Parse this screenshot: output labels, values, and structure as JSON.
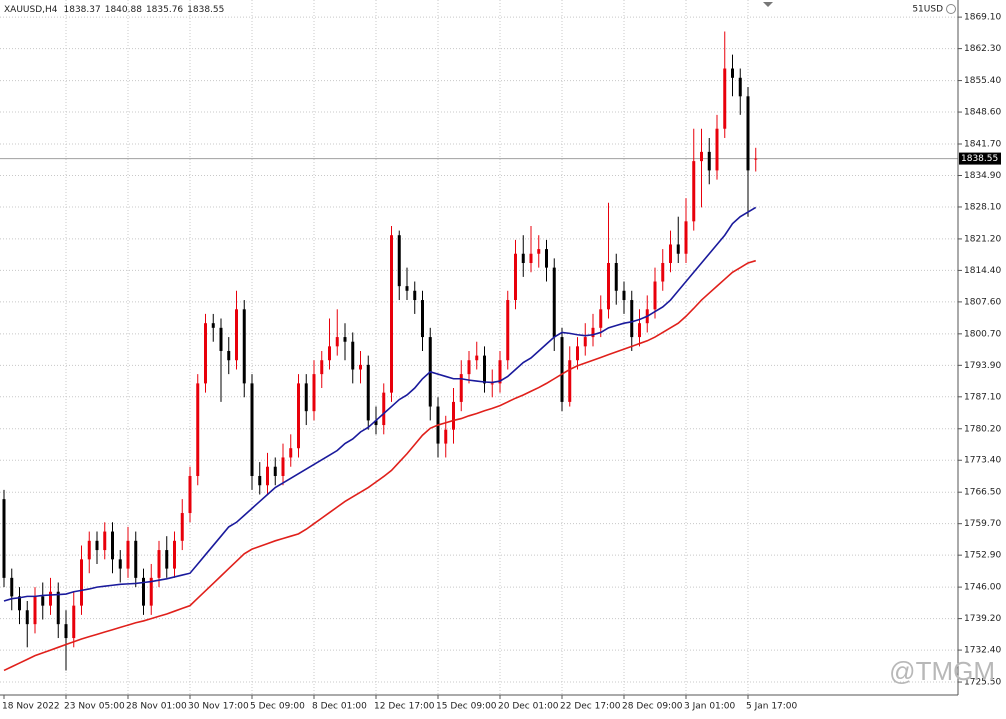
{
  "chart_data": {
    "type": "candlestick",
    "symbol": "XAUUSD,H4",
    "badge": "51USD",
    "watermark": "@TMGM",
    "up_color": "#e8000b",
    "down_color": "#000000",
    "grid": true,
    "ylim": [
      1722.7,
      1872.8
    ],
    "yticks": [
      {
        "value": 1869.1,
        "label": "1869.10"
      },
      {
        "value": 1862.3,
        "label": "1862.30"
      },
      {
        "value": 1855.4,
        "label": "1855.40"
      },
      {
        "value": 1848.6,
        "label": "1848.60"
      },
      {
        "value": 1841.7,
        "label": "1841.70"
      },
      {
        "value": 1834.9,
        "label": "1834.90"
      },
      {
        "value": 1828.1,
        "label": "1828.10"
      },
      {
        "value": 1821.2,
        "label": "1821.20"
      },
      {
        "value": 1814.4,
        "label": "1814.40"
      },
      {
        "value": 1807.6,
        "label": "1807.60"
      },
      {
        "value": 1800.7,
        "label": "1800.70"
      },
      {
        "value": 1793.9,
        "label": "1793.90"
      },
      {
        "value": 1787.1,
        "label": "1787.10"
      },
      {
        "value": 1780.2,
        "label": "1780.20"
      },
      {
        "value": 1773.4,
        "label": "1773.40"
      },
      {
        "value": 1766.5,
        "label": "1766.50"
      },
      {
        "value": 1759.7,
        "label": "1759.70"
      },
      {
        "value": 1752.9,
        "label": "1752.90"
      },
      {
        "value": 1746,
        "label": "1746.00"
      },
      {
        "value": 1739.2,
        "label": "1739.20"
      },
      {
        "value": 1732.4,
        "label": "1732.40"
      },
      {
        "value": 1725.5,
        "label": "1725.50"
      }
    ],
    "categories": [
      "18 Nov 2022",
      null,
      null,
      null,
      null,
      null,
      null,
      null,
      "23 Nov 05:00",
      null,
      null,
      null,
      null,
      null,
      null,
      null,
      "28 Nov 01:00",
      null,
      null,
      null,
      null,
      null,
      null,
      null,
      "30 Nov 17:00",
      null,
      null,
      null,
      null,
      null,
      null,
      null,
      "5 Dec 09:00",
      null,
      null,
      null,
      null,
      null,
      null,
      null,
      "8 Dec 01:00",
      null,
      null,
      null,
      null,
      null,
      null,
      null,
      "12 Dec 17:00",
      null,
      null,
      null,
      null,
      null,
      null,
      null,
      "15 Dec 09:00",
      null,
      null,
      null,
      null,
      null,
      null,
      null,
      "20 Dec 01:00",
      null,
      null,
      null,
      null,
      null,
      null,
      null,
      "22 Dec 17:00",
      null,
      null,
      null,
      null,
      null,
      null,
      null,
      "28 Dec 09:00",
      null,
      null,
      null,
      null,
      null,
      null,
      null,
      "3 Jan 01:00",
      null,
      null,
      null,
      null,
      null,
      null,
      null,
      "5 Jan 17:00",
      null
    ],
    "open": [
      1765,
      1748,
      1744,
      1741,
      1738,
      1744,
      1742,
      1745,
      1738,
      1735,
      1742,
      1752,
      1756,
      1754,
      1758,
      1752,
      1750,
      1756,
      1748,
      1742,
      1748,
      1754,
      1750,
      1756,
      1762,
      1770,
      1790,
      1803,
      1802,
      1797,
      1795,
      1806,
      1790,
      1770,
      1768,
      1772,
      1770,
      1774,
      1776,
      1790,
      1784,
      1792,
      1795,
      1798,
      1800,
      1799,
      1793,
      1794,
      1782,
      1781,
      1788,
      1822,
      1811,
      1810,
      1808,
      1800,
      1785,
      1777,
      1780,
      1786,
      1792,
      1795,
      1796,
      1790,
      1790,
      1795,
      1808,
      1818,
      1816,
      1818,
      1819,
      1815,
      1800,
      1786,
      1795,
      1798,
      1800,
      1802,
      1806,
      1816,
      1810,
      1808,
      1800,
      1803,
      1806,
      1812,
      1816,
      1820,
      1818,
      1825,
      1838,
      1840,
      1836,
      1845,
      1858,
      1856,
      1852,
      1838.37
    ],
    "high": [
      1767,
      1750,
      1746,
      1743,
      1746,
      1747,
      1748,
      1747,
      1741,
      1745,
      1755,
      1758,
      1758,
      1760,
      1760,
      1754,
      1759,
      1758,
      1750,
      1751,
      1756,
      1757,
      1758,
      1765,
      1772,
      1792,
      1805,
      1805,
      1804,
      1800,
      1810,
      1808,
      1792,
      1773,
      1775,
      1774,
      1777,
      1779,
      1792,
      1792,
      1795,
      1797,
      1804,
      1806,
      1803,
      1801,
      1797,
      1796,
      1785,
      1790,
      1824,
      1823,
      1815,
      1812,
      1810,
      1802,
      1787,
      1783,
      1789,
      1795,
      1797,
      1799,
      1798,
      1793,
      1797,
      1810,
      1821,
      1822,
      1824,
      1822,
      1821,
      1817,
      1802,
      1798,
      1800,
      1803,
      1805,
      1809,
      1829,
      1818,
      1812,
      1810,
      1806,
      1809,
      1815,
      1819,
      1823,
      1826,
      1830,
      1845,
      1845,
      1843,
      1848,
      1866,
      1861,
      1858,
      1854,
      1840.88
    ],
    "low": [
      1746,
      1741,
      1738,
      1733,
      1736,
      1739,
      1740,
      1735,
      1728,
      1733,
      1740,
      1749,
      1751,
      1752,
      1749,
      1747,
      1748,
      1746,
      1740,
      1740,
      1746,
      1748,
      1748,
      1754,
      1760,
      1768,
      1788,
      1799,
      1786,
      1792,
      1793,
      1787,
      1767,
      1766,
      1766,
      1768,
      1768,
      1772,
      1774,
      1781,
      1782,
      1789,
      1793,
      1796,
      1795,
      1790,
      1790,
      1780,
      1779,
      1779,
      1786,
      1808,
      1808,
      1805,
      1797,
      1782,
      1774,
      1774,
      1777,
      1784,
      1790,
      1793,
      1788,
      1787,
      1788,
      1793,
      1806,
      1813,
      1814,
      1815,
      1812,
      1797,
      1784,
      1785,
      1793,
      1796,
      1798,
      1800,
      1804,
      1807,
      1805,
      1797,
      1798,
      1801,
      1804,
      1810,
      1814,
      1816,
      1816,
      1823,
      1828,
      1833,
      1834,
      1843,
      1852,
      1848,
      1826,
      1835.76
    ],
    "close": [
      1748,
      1744,
      1741,
      1738,
      1744,
      1742,
      1745,
      1738,
      1735,
      1742,
      1752,
      1756,
      1754,
      1758,
      1752,
      1750,
      1756,
      1748,
      1742,
      1748,
      1754,
      1750,
      1756,
      1762,
      1770,
      1790,
      1803,
      1802,
      1797,
      1795,
      1806,
      1790,
      1770,
      1768,
      1772,
      1770,
      1774,
      1776,
      1790,
      1784,
      1792,
      1795,
      1798,
      1800,
      1799,
      1793,
      1794,
      1782,
      1781,
      1788,
      1822,
      1811,
      1810,
      1808,
      1800,
      1785,
      1777,
      1780,
      1786,
      1792,
      1795,
      1796,
      1790,
      1790,
      1795,
      1808,
      1818,
      1816,
      1818,
      1819,
      1815,
      1800,
      1786,
      1795,
      1798,
      1800,
      1802,
      1806,
      1816,
      1810,
      1808,
      1800,
      1803,
      1806,
      1812,
      1816,
      1820,
      1818,
      1825,
      1838,
      1840,
      1836,
      1845,
      1858,
      1856,
      1852,
      1836,
      1838.55
    ],
    "series": [
      {
        "color": "#1a1a9c",
        "values": [
          1743,
          1743.5,
          1743.7,
          1744,
          1744,
          1744.2,
          1744.3,
          1744.4,
          1744.5,
          1745,
          1745.3,
          1745.6,
          1746,
          1746.2,
          1746.4,
          1746.6,
          1746.7,
          1746.8,
          1747,
          1747.2,
          1747.5,
          1747.8,
          1748.2,
          1748.6,
          1749,
          1751,
          1753,
          1755,
          1757,
          1759,
          1760,
          1761.5,
          1763,
          1764.5,
          1766,
          1767.5,
          1768.5,
          1769.5,
          1770.5,
          1771.5,
          1772.5,
          1773.5,
          1774.5,
          1775.5,
          1777,
          1778,
          1779.5,
          1780.5,
          1782,
          1783.5,
          1785,
          1786.5,
          1787.5,
          1789,
          1791,
          1792.5,
          1792,
          1791.5,
          1791,
          1791,
          1790.7,
          1790.5,
          1790.3,
          1790.2,
          1790.5,
          1791.5,
          1793,
          1794.5,
          1795.5,
          1797,
          1798.5,
          1800,
          1801,
          1800.8,
          1800.5,
          1800.3,
          1800.5,
          1801,
          1802,
          1802.5,
          1803,
          1803.3,
          1803.8,
          1804.5,
          1805.5,
          1806.5,
          1808,
          1810,
          1812,
          1814,
          1816,
          1818,
          1820,
          1822,
          1824.5,
          1826,
          1827,
          1828
        ]
      },
      {
        "color": "#e0201b",
        "values": [
          1728,
          1728.8,
          1729.6,
          1730.4,
          1731.2,
          1731.8,
          1732.4,
          1733,
          1733.6,
          1734.2,
          1734.8,
          1735.3,
          1735.8,
          1736.3,
          1736.8,
          1737.3,
          1737.8,
          1738.3,
          1738.7,
          1739.2,
          1739.7,
          1740.2,
          1740.8,
          1741.4,
          1742,
          1743.6,
          1745.2,
          1746.8,
          1748.4,
          1750,
          1751.6,
          1753.2,
          1754.2,
          1754.8,
          1755.4,
          1756,
          1756.5,
          1757,
          1757.5,
          1758.5,
          1759.7,
          1760.9,
          1762.1,
          1763.3,
          1764.5,
          1765.5,
          1766.5,
          1767.5,
          1768.7,
          1769.9,
          1771.2,
          1773,
          1774.8,
          1776.8,
          1778.8,
          1780.3,
          1781,
          1781.5,
          1782,
          1782.4,
          1783,
          1783.5,
          1784.1,
          1784.6,
          1785.2,
          1786,
          1786.8,
          1787.5,
          1788.3,
          1789.1,
          1790,
          1791,
          1792,
          1793,
          1793.8,
          1794.4,
          1795,
          1795.6,
          1796.2,
          1796.8,
          1797.4,
          1798,
          1798.6,
          1799.2,
          1800,
          1801,
          1802,
          1803,
          1804.5,
          1806.2,
          1808,
          1809.5,
          1811,
          1812.5,
          1814,
          1815,
          1816,
          1816.5
        ]
      }
    ]
  }
}
